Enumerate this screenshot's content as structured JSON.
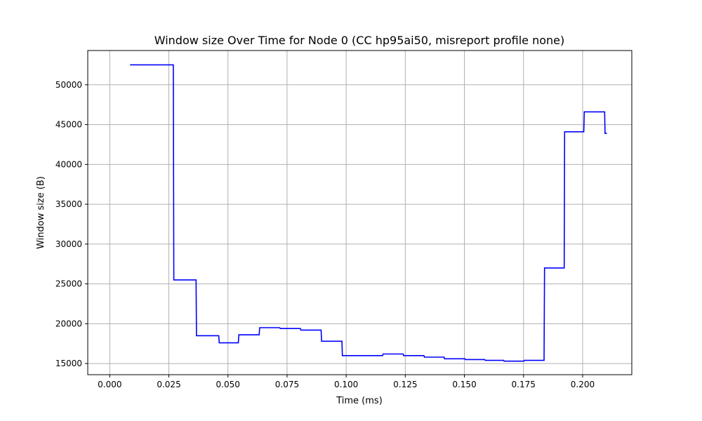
{
  "chart_data": {
    "type": "line",
    "title": "Window size Over Time for Node 0 (CC hp95ai50, misreport profile none)",
    "xlabel": "Time (ms)",
    "ylabel": "Window size (B)",
    "xlim": [
      -0.0093,
      0.2208
    ],
    "ylim": [
      13600,
      54300
    ],
    "xticks": [
      0.0,
      0.025,
      0.05,
      0.075,
      0.1,
      0.125,
      0.15,
      0.175,
      0.2
    ],
    "xtick_labels": [
      "0.000",
      "0.025",
      "0.050",
      "0.075",
      "0.100",
      "0.125",
      "0.150",
      "0.175",
      "0.200"
    ],
    "yticks": [
      15000,
      20000,
      25000,
      30000,
      35000,
      40000,
      45000,
      50000
    ],
    "ytick_labels": [
      "15000",
      "20000",
      "25000",
      "30000",
      "35000",
      "40000",
      "45000",
      "50000"
    ],
    "grid": true,
    "series": [
      {
        "color": "#0000ff",
        "step": true,
        "x": [
          0.0086,
          0.0269,
          0.0271,
          0.0365,
          0.0367,
          0.0461,
          0.0463,
          0.0544,
          0.0546,
          0.0632,
          0.0634,
          0.0719,
          0.0721,
          0.0806,
          0.0808,
          0.0894,
          0.0896,
          0.0982,
          0.0984,
          0.1068,
          0.107,
          0.1154,
          0.1156,
          0.1241,
          0.1243,
          0.1329,
          0.1331,
          0.1414,
          0.1416,
          0.1502,
          0.1504,
          0.1586,
          0.1588,
          0.1666,
          0.1668,
          0.1752,
          0.1754,
          0.1837,
          0.1839,
          0.1922,
          0.1924,
          0.2005,
          0.2007,
          0.2093,
          0.2095,
          0.2103
        ],
        "y": [
          52500,
          52500,
          25500,
          25500,
          18500,
          18500,
          17600,
          17600,
          18600,
          18600,
          19500,
          19500,
          19400,
          19400,
          19200,
          19200,
          17800,
          17800,
          16000,
          16000,
          16000,
          16000,
          16200,
          16200,
          16000,
          16000,
          15800,
          15800,
          15600,
          15600,
          15500,
          15500,
          15400,
          15400,
          15300,
          15300,
          15400,
          15400,
          27000,
          27000,
          44100,
          44100,
          46600,
          46600,
          43900,
          43900
        ]
      }
    ]
  }
}
